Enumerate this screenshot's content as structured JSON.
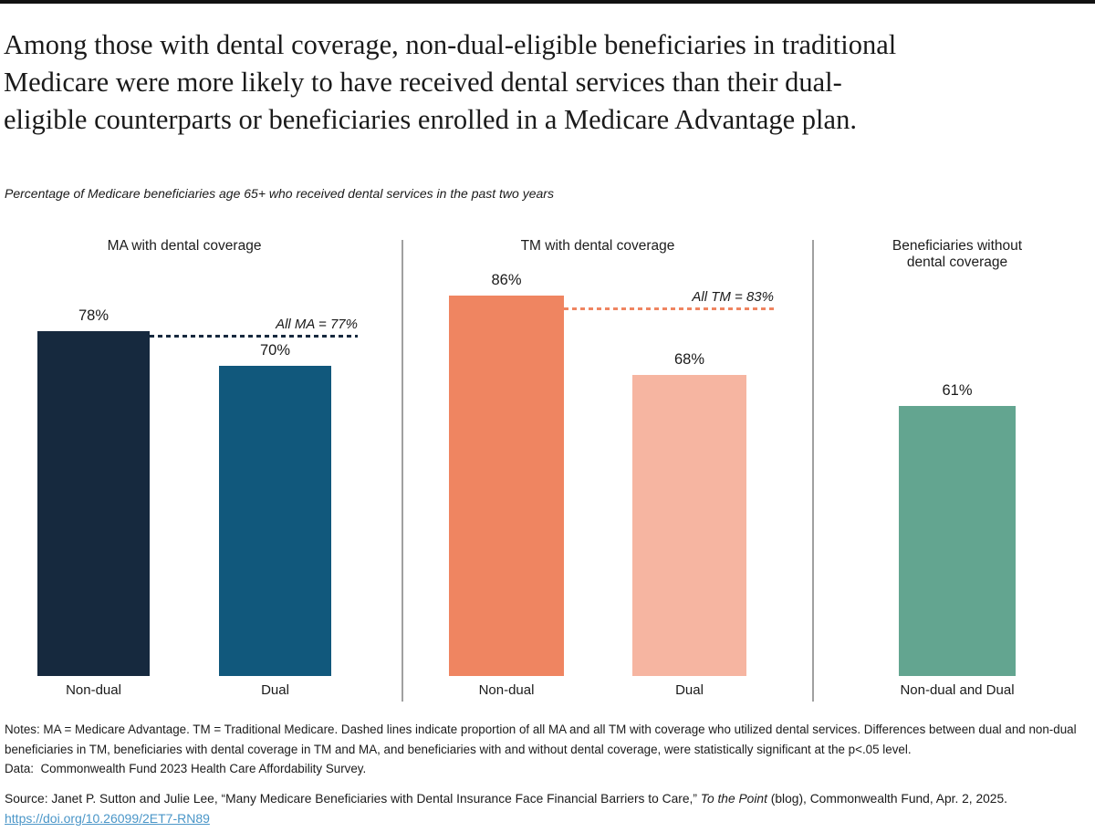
{
  "header": {
    "title": "Among those with dental coverage, non-dual-eligible beneficiaries in traditional\nMedicare were more likely to have received dental services than their dual-\neligible counterparts or beneficiaries enrolled in a Medicare Advantage plan.",
    "subtitle": "Percentage of Medicare beneficiaries age 65+ who received dental services in the past two years"
  },
  "chart_data": {
    "type": "bar",
    "title": "Among those with dental coverage, non-dual-eligible beneficiaries in traditional Medicare were more likely to have received dental services than their dual-eligible counterparts or beneficiaries enrolled in a Medicare Advantage plan.",
    "subtitle": "Percentage of Medicare beneficiaries age 65+ who received dental services in the past two years",
    "unit": "percent",
    "ylim": [
      0,
      100
    ],
    "grid": false,
    "legend": false,
    "panels": [
      {
        "header": "MA with dental coverage",
        "categories": [
          "Non-dual",
          "Dual"
        ],
        "values": [
          78,
          70
        ],
        "value_labels": [
          "78%",
          "70%"
        ],
        "colors": [
          "#16293e",
          "#11587c"
        ],
        "reference_line": {
          "label": "All MA = 77%",
          "value": 77,
          "color": "#16293e",
          "style": "dashed"
        }
      },
      {
        "header": "TM with dental coverage",
        "categories": [
          "Non-dual",
          "Dual"
        ],
        "values": [
          86,
          68
        ],
        "value_labels": [
          "86%",
          "68%"
        ],
        "colors": [
          "#ef8561",
          "#f6b5a1"
        ],
        "reference_line": {
          "label": "All TM = 83%",
          "value": 83,
          "color": "#ef8561",
          "style": "dashed"
        }
      },
      {
        "header": "Beneficiaries without\ndental coverage",
        "categories": [
          "Non-dual and Dual"
        ],
        "values": [
          61
        ],
        "value_labels": [
          "61%"
        ],
        "colors": [
          "#63a590"
        ],
        "reference_line": null
      }
    ]
  },
  "notes": {
    "notes_text": "Notes: MA = Medicare Advantage. TM = Traditional Medicare. Dashed lines indicate proportion of all MA and all TM with coverage who utilized dental services. Differences between dual and non-dual beneficiaries in TM, beneficiaries with dental coverage in TM and MA, and beneficiaries with and without dental coverage, were statistically significant at the p<.05 level.",
    "data_text": "Data:  Commonwealth Fund 2023 Health Care Affordability Survey."
  },
  "source": {
    "prefix": "Source: Janet P. Sutton and Julie Lee, “Many Medicare Beneficiaries with Dental Insurance Face Financial Barriers to Care,” ",
    "italic": "To the Point",
    "suffix": " (blog), Commonwealth Fund, Apr. 2, 2025.",
    "link": "https://doi.org/10.26099/2ET7-RN89"
  }
}
